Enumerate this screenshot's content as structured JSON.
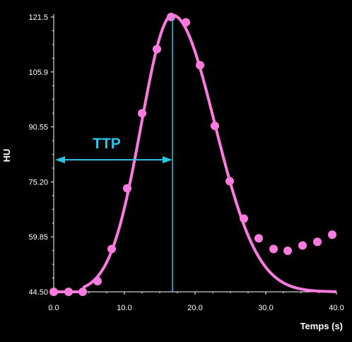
{
  "chart_data": {
    "type": "scatter",
    "xlabel": "Temps (s)",
    "ylabel": "HU",
    "xlim": [
      0,
      40
    ],
    "ylim": [
      44.5,
      121.5
    ],
    "x_ticks": [
      "0.0",
      "10.0",
      "20.0",
      "30.0",
      "40.0"
    ],
    "y_ticks": [
      "44.50",
      "59.85",
      "75.20",
      "90.55",
      "105.9",
      "121.5"
    ],
    "grid": false,
    "legend": "none",
    "series": [
      {
        "kind": "points",
        "color": "#ff7be0",
        "x": [
          0.0,
          2.1,
          4.1,
          6.2,
          8.2,
          10.4,
          12.5,
          14.6,
          16.6,
          18.7,
          20.7,
          22.8,
          24.9,
          26.9,
          29.0,
          31.1,
          33.1,
          35.2,
          37.3,
          39.4
        ],
        "y": [
          44.5,
          44.5,
          44.5,
          47.5,
          56.5,
          73.5,
          94.5,
          112.5,
          121.5,
          120.0,
          108.0,
          91.0,
          75.5,
          65.0,
          59.5,
          56.5,
          56.0,
          57.5,
          58.5,
          60.5
        ]
      },
      {
        "kind": "fit",
        "color": "#ff7be0",
        "baseline": 44.5,
        "peak": 122,
        "t_start": 4.3,
        "t_peak": 16.8,
        "sigma_rise": 4.4,
        "sigma_fall": 6.0
      }
    ],
    "annotations": [
      {
        "label": "TTP",
        "color": "#2ec4e6",
        "x_from": 0.0,
        "x_to": 16.8,
        "y_at": 81.5,
        "vline_x": 16.8
      }
    ]
  }
}
